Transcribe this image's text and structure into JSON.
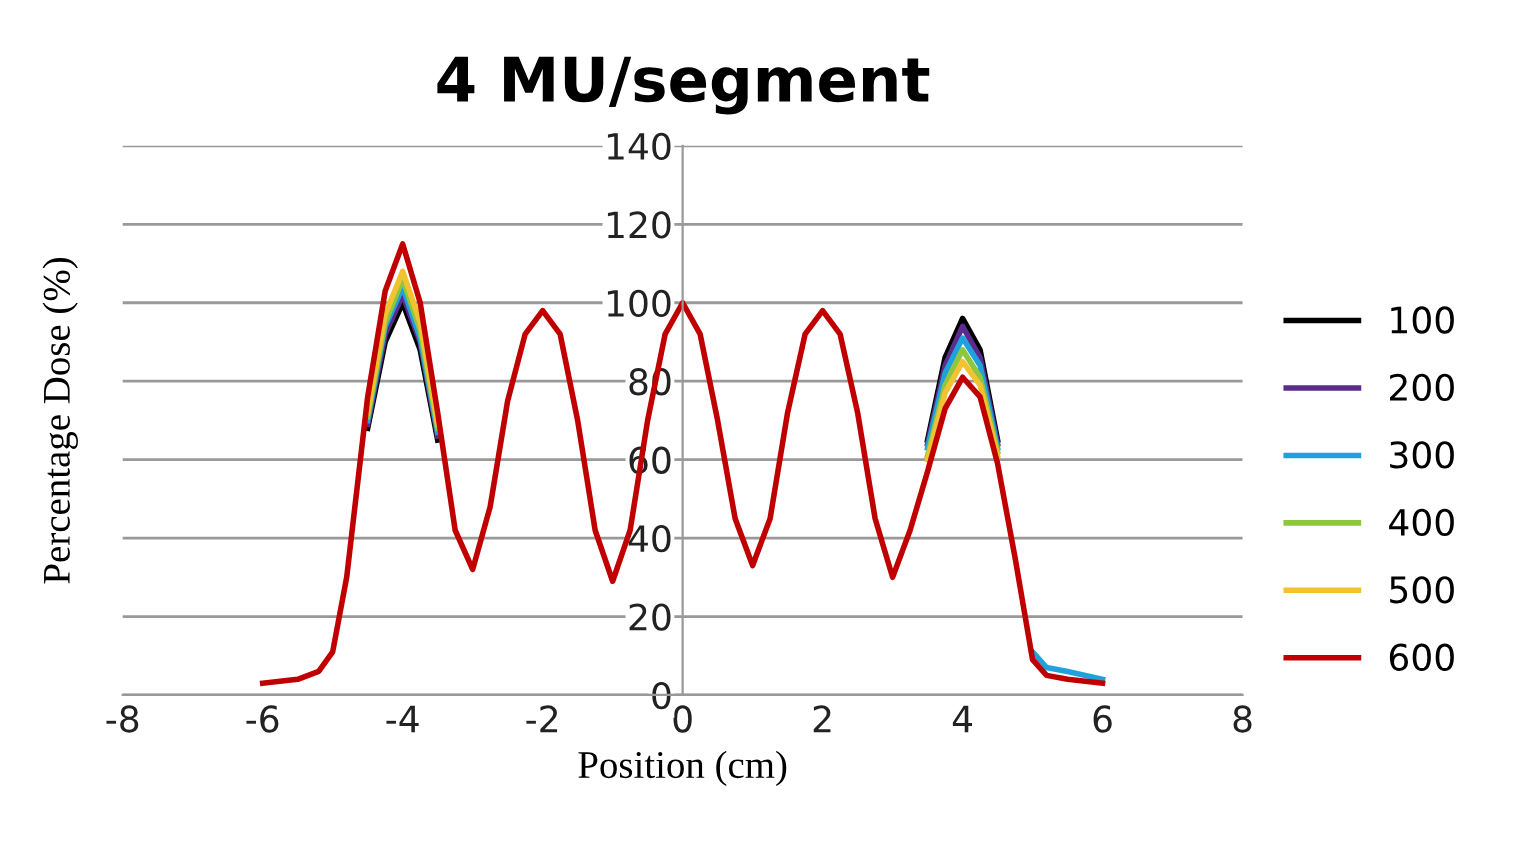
{
  "chart_data": {
    "type": "line",
    "title": "4 MU/segment",
    "xlabel": "Position (cm)",
    "ylabel": "Percentage Dose (%)",
    "x": [
      -6,
      -5.5,
      -5.2,
      -5,
      -4.8,
      -4.5,
      -4.25,
      -4,
      -3.75,
      -3.5,
      -3.25,
      -3,
      -2.75,
      -2.5,
      -2.25,
      -2,
      -1.75,
      -1.5,
      -1.25,
      -1,
      -0.75,
      -0.5,
      -0.25,
      0,
      0.25,
      0.5,
      0.75,
      1,
      1.25,
      1.5,
      1.75,
      2,
      2.25,
      2.5,
      2.75,
      3,
      3.25,
      3.5,
      3.75,
      4,
      4.25,
      4.5,
      4.75,
      5,
      5.2,
      5.5,
      6
    ],
    "series": [
      {
        "name": "100",
        "color": "#000000",
        "values": [
          null,
          null,
          null,
          null,
          null,
          68,
          90,
          100,
          88,
          65,
          null,
          null,
          null,
          null,
          null,
          null,
          null,
          null,
          null,
          null,
          null,
          null,
          null,
          null,
          null,
          null,
          null,
          null,
          null,
          null,
          null,
          null,
          null,
          null,
          null,
          null,
          null,
          65,
          86,
          96,
          88,
          65,
          null,
          null,
          null,
          null,
          null
        ]
      },
      {
        "name": "200",
        "color": "#5b2c8e",
        "values": [
          null,
          null,
          null,
          null,
          null,
          69,
          92,
          102,
          90,
          66,
          null,
          null,
          null,
          null,
          null,
          null,
          null,
          null,
          null,
          null,
          null,
          null,
          null,
          null,
          null,
          null,
          null,
          null,
          null,
          null,
          null,
          null,
          null,
          null,
          null,
          null,
          null,
          64,
          84,
          94,
          86,
          64,
          null,
          null,
          null,
          null,
          null
        ]
      },
      {
        "name": "300",
        "color": "#1fa2dc",
        "values": [
          null,
          null,
          null,
          null,
          null,
          70,
          94,
          104,
          91,
          67,
          null,
          null,
          null,
          null,
          null,
          null,
          null,
          null,
          null,
          null,
          null,
          null,
          null,
          null,
          null,
          null,
          null,
          null,
          null,
          null,
          null,
          null,
          null,
          null,
          null,
          null,
          null,
          63,
          82,
          91,
          84,
          63,
          null,
          11,
          7,
          6,
          4
        ]
      },
      {
        "name": "400",
        "color": "#8dc63f",
        "values": [
          null,
          null,
          null,
          null,
          null,
          71,
          95,
          106,
          93,
          68,
          null,
          null,
          null,
          null,
          null,
          null,
          null,
          null,
          null,
          null,
          null,
          null,
          null,
          null,
          null,
          null,
          null,
          null,
          null,
          null,
          null,
          null,
          null,
          null,
          null,
          null,
          null,
          61,
          79,
          88,
          81,
          62,
          null,
          null,
          null,
          null,
          null
        ]
      },
      {
        "name": "500",
        "color": "#f2c230",
        "values": [
          null,
          null,
          null,
          null,
          null,
          72,
          97,
          108,
          95,
          69,
          null,
          null,
          null,
          null,
          null,
          null,
          null,
          null,
          null,
          null,
          null,
          null,
          null,
          null,
          null,
          null,
          null,
          null,
          null,
          null,
          null,
          null,
          null,
          null,
          null,
          null,
          null,
          60,
          77,
          85,
          79,
          61,
          null,
          null,
          null,
          null,
          null
        ]
      },
      {
        "name": "600",
        "color": "#c00000",
        "values": [
          3,
          4,
          6,
          11,
          30,
          76,
          103,
          115,
          100,
          72,
          42,
          32,
          48,
          75,
          92,
          98,
          92,
          70,
          42,
          29,
          42,
          70,
          92,
          100,
          92,
          70,
          45,
          33,
          45,
          72,
          92,
          98,
          92,
          72,
          45,
          30,
          42,
          57,
          73,
          81,
          76,
          59,
          35,
          9,
          5,
          4,
          3
        ]
      }
    ],
    "xlim": [
      -8,
      8
    ],
    "ylim": [
      0,
      140
    ],
    "xticks": [
      -8,
      -6,
      -4,
      -2,
      0,
      2,
      4,
      6,
      8
    ],
    "yticks": [
      0,
      20,
      40,
      60,
      80,
      100,
      120,
      140
    ],
    "grid": "y",
    "legend": "right",
    "marker": "none",
    "line_style": "solid"
  }
}
